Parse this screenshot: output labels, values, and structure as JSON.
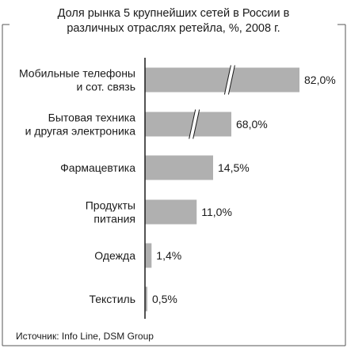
{
  "chart_data": {
    "type": "bar",
    "orientation": "horizontal",
    "title_lines": [
      "Доля рынка 5 крупнейших сетей в России в",
      "различных отраслях ретейла, %, 2008 г."
    ],
    "categories": [
      [
        "Мобильные телефоны",
        "и сот. связь"
      ],
      [
        "Бытовая техника",
        "и другая электроника"
      ],
      [
        "Фармацевтика"
      ],
      [
        "Продукты",
        "питания"
      ],
      [
        "Одежда"
      ],
      [
        "Текстиль"
      ]
    ],
    "values": [
      82.0,
      68.0,
      14.5,
      11.0,
      1.4,
      0.5
    ],
    "value_labels": [
      "82,0%",
      "68,0%",
      "14,5%",
      "11,0%",
      "1,4%",
      "0,5%"
    ],
    "axis_break": [
      true,
      true,
      false,
      false,
      false,
      false
    ],
    "colors": {
      "bar": "#b0b0b0",
      "axis": "#1a1a1a",
      "frame": "#555555"
    },
    "source": "Источник: Info Line, DSM Group"
  }
}
